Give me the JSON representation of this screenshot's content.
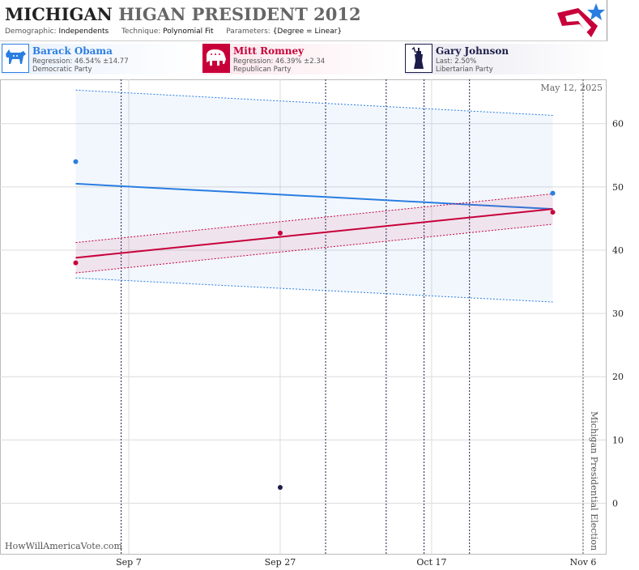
{
  "header": {
    "title_state": "MICHIGAN",
    "title_rest": "HIGAN PRESIDENT 2012",
    "demographic_label": "Demographic:",
    "demographic_value": "Independents",
    "technique_label": "Technique:",
    "technique_value": "Polynomial Fit",
    "parameters_label": "Parameters:",
    "parameters_value": "{Degree = Linear}"
  },
  "candidates": [
    {
      "name": "Barack Obama",
      "stat": "Regression: 46.54% ±14.77",
      "party": "Democratic Party",
      "color": "#2a7de1",
      "icon": "donkey-icon"
    },
    {
      "name": "Mitt Romney",
      "stat": "Regression: 46.39% ±2.34",
      "party": "Republican Party",
      "color": "#c8003a",
      "icon": "elephant-icon"
    },
    {
      "name": "Gary Johnson",
      "stat": "Last: 2.50%",
      "party": "Libertarian Party",
      "color": "#1c1c4a",
      "icon": "liberty-statue-icon"
    }
  ],
  "chart_data": {
    "type": "line",
    "date_stamp": "May 12, 2025",
    "watermark": "HowWillAmericaVote.com",
    "election_label": "Michigan Presidential Election",
    "x_ticks": [
      "Sep 7",
      "Sep 27",
      "Oct 17",
      "Nov 6"
    ],
    "y_ticks": [
      "0",
      "10",
      "20",
      "30",
      "40",
      "50",
      "60"
    ],
    "ylim": [
      -8,
      67
    ],
    "xlim": [
      "2012-08-21",
      "2012-11-09"
    ],
    "vlines_dotted": [
      "2012-09-06",
      "2012-10-03",
      "2012-10-11",
      "2012-10-16",
      "2012-10-22"
    ],
    "election_date": "2012-11-06",
    "series": [
      {
        "name": "Barack Obama",
        "color": "#2a7de1",
        "fit": {
          "start": [
            "2012-08-31",
            50.5
          ],
          "end": [
            "2012-11-02",
            46.5
          ]
        },
        "band_upper": {
          "start": 65.3,
          "end": 61.3
        },
        "band_lower": {
          "start": 35.6,
          "end": 31.8
        },
        "points": [
          [
            "2012-08-31",
            54.0
          ],
          [
            "2012-11-02",
            49.0
          ]
        ]
      },
      {
        "name": "Mitt Romney",
        "color": "#c8003a",
        "fit": {
          "start": [
            "2012-08-31",
            38.8
          ],
          "end": [
            "2012-11-02",
            46.5
          ]
        },
        "band_upper": {
          "start": 41.2,
          "end": 48.9
        },
        "band_lower": {
          "start": 36.4,
          "end": 44.1
        },
        "points": [
          [
            "2012-08-31",
            38.0
          ],
          [
            "2012-09-27",
            42.7
          ],
          [
            "2012-11-02",
            46.0
          ]
        ]
      },
      {
        "name": "Gary Johnson",
        "color": "#1c1c4a",
        "points": [
          [
            "2012-09-27",
            2.5
          ]
        ]
      }
    ]
  }
}
